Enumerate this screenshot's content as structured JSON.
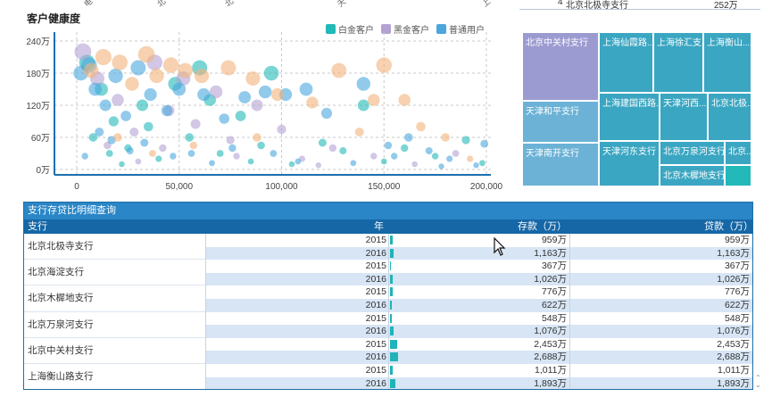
{
  "top_ticks": [
    "电",
    "北",
    "北",
    "天",
    "上"
  ],
  "top_fragment": {
    "row_number": "4",
    "branch": "北京北极寺支行",
    "value": "252万"
  },
  "scatter": {
    "title": "客户健康度",
    "legend": [
      {
        "name": "白金客户",
        "color": "#22b9b8"
      },
      {
        "name": "黑金客户",
        "color": "#b4a2d4"
      },
      {
        "name": "普通用户",
        "color": "#4aa6dd"
      }
    ],
    "y_ticks": [
      "240万",
      "180万",
      "120万",
      "60万",
      "0万"
    ],
    "x_ticks": [
      "0",
      "50,000",
      "100,000",
      "150,000",
      "200,000"
    ]
  },
  "chart_data": {
    "type": "scatter",
    "title": "客户健康度",
    "xlabel": "",
    "ylabel": "",
    "x_range": [
      0,
      200000
    ],
    "y_range": [
      0,
      240
    ],
    "y_unit": "万",
    "grid": true,
    "legend_position": "top-right",
    "series": [
      {
        "name": "白金客户",
        "color": "#22b9b8",
        "points": [
          [
            5000,
            200
          ],
          [
            12000,
            150
          ],
          [
            18000,
            90
          ],
          [
            25000,
            40
          ],
          [
            32000,
            120
          ],
          [
            40000,
            20
          ],
          [
            48000,
            160
          ],
          [
            55000,
            60
          ],
          [
            60000,
            190
          ],
          [
            70000,
            30
          ],
          [
            80000,
            100
          ],
          [
            90000,
            45
          ],
          [
            95000,
            180
          ],
          [
            105000,
            10
          ],
          [
            120000,
            50
          ],
          [
            140000,
            120
          ],
          [
            150000,
            15
          ],
          [
            160000,
            40
          ],
          [
            175000,
            25
          ],
          [
            190000,
            55
          ],
          [
            198000,
            12
          ],
          [
            8000,
            60
          ],
          [
            16000,
            30
          ],
          [
            22000,
            10
          ],
          [
            35000,
            80
          ],
          [
            65000,
            130
          ],
          [
            85000,
            15
          ],
          [
            130000,
            35
          ]
        ]
      },
      {
        "name": "黑金客户",
        "color": "#b4a2d4",
        "points": [
          [
            3000,
            220
          ],
          [
            10000,
            170
          ],
          [
            20000,
            130
          ],
          [
            28000,
            70
          ],
          [
            38000,
            200
          ],
          [
            45000,
            110
          ],
          [
            52000,
            170
          ],
          [
            58000,
            85
          ],
          [
            68000,
            145
          ],
          [
            75000,
            55
          ],
          [
            88000,
            120
          ],
          [
            100000,
            75
          ],
          [
            110000,
            20
          ],
          [
            125000,
            40
          ],
          [
            145000,
            25
          ],
          [
            165000,
            10
          ],
          [
            185000,
            30
          ],
          [
            15000,
            45
          ],
          [
            30000,
            15
          ],
          [
            42000,
            40
          ],
          [
            78000,
            25
          ],
          [
            118000,
            8
          ]
        ]
      },
      {
        "name": "普通用户",
        "color": "#4aa6dd",
        "points": [
          [
            2000,
            180
          ],
          [
            6000,
            195
          ],
          [
            9000,
            150
          ],
          [
            14000,
            120
          ],
          [
            19000,
            175
          ],
          [
            24000,
            100
          ],
          [
            30000,
            190
          ],
          [
            36000,
            140
          ],
          [
            44000,
            110
          ],
          [
            50000,
            150
          ],
          [
            62000,
            140
          ],
          [
            72000,
            95
          ],
          [
            82000,
            135
          ],
          [
            92000,
            145
          ],
          [
            102000,
            140
          ],
          [
            112000,
            150
          ],
          [
            122000,
            105
          ],
          [
            140000,
            160
          ],
          [
            152000,
            45
          ],
          [
            162000,
            60
          ],
          [
            172000,
            35
          ],
          [
            182000,
            20
          ],
          [
            195000,
            8
          ],
          [
            4000,
            25
          ],
          [
            11000,
            70
          ],
          [
            17000,
            55
          ],
          [
            26000,
            35
          ],
          [
            33000,
            50
          ],
          [
            47000,
            25
          ],
          [
            56000,
            30
          ],
          [
            66000,
            12
          ],
          [
            76000,
            40
          ],
          [
            96000,
            30
          ],
          [
            108000,
            15
          ],
          [
            135000,
            12
          ],
          [
            155000,
            25
          ],
          [
            178000,
            6
          ],
          [
            199000,
            48
          ]
        ]
      },
      {
        "name": "",
        "color": "#f2b27c",
        "points": [
          [
            7000,
            185
          ],
          [
            13000,
            210
          ],
          [
            21000,
            200
          ],
          [
            27000,
            160
          ],
          [
            34000,
            215
          ],
          [
            39000,
            175
          ],
          [
            46000,
            195
          ],
          [
            53000,
            185
          ],
          [
            61000,
            175
          ],
          [
            74000,
            190
          ],
          [
            86000,
            170
          ],
          [
            98000,
            140
          ],
          [
            115000,
            125
          ],
          [
            128000,
            185
          ],
          [
            145000,
            130
          ],
          [
            150000,
            195
          ],
          [
            160000,
            130
          ],
          [
            168000,
            80
          ],
          [
            180000,
            60
          ],
          [
            192000,
            20
          ],
          [
            20000,
            60
          ],
          [
            37000,
            30
          ],
          [
            57000,
            45
          ],
          [
            88000,
            60
          ],
          [
            138000,
            70
          ]
        ]
      }
    ]
  },
  "treemap": {
    "cells": [
      {
        "label": "北京中关村支行",
        "color": "#9c9bd1"
      },
      {
        "label": "上海仙霞路...",
        "color": "#3aa6c2"
      },
      {
        "label": "上海徐汇支...",
        "color": "#3aa6c2"
      },
      {
        "label": "上海衡山...",
        "color": "#3aa6c2"
      },
      {
        "label": "天津和平支行",
        "color": "#6bb2d6"
      },
      {
        "label": "上海建国西路...",
        "color": "#3aa6c2"
      },
      {
        "label": "天津河西...",
        "color": "#3aa6c2"
      },
      {
        "label": "北京北极...",
        "color": "#3aa6c2"
      },
      {
        "label": "天津南开支行",
        "color": "#6bb2d6"
      },
      {
        "label": "天津河东支行",
        "color": "#3aa6c2"
      },
      {
        "label": "北京万泉河支行",
        "color": "#3aa6c2"
      },
      {
        "label": "北京...",
        "color": "#3aa6c2"
      },
      {
        "label": "北京木樨地支行",
        "color": "#3aa6c2"
      },
      {
        "label": "",
        "color": "#22b9b8"
      }
    ]
  },
  "detail": {
    "title": "支行存贷比明细查询",
    "headers": {
      "branch": "支行",
      "year": "年",
      "deposit": "存款（万）",
      "loan": "贷款（万）"
    },
    "max_value": 2688,
    "rows": [
      {
        "branch": "北京北极寺支行",
        "year": "2015",
        "deposit": "959万",
        "deposit_value": 959,
        "loan": "959万"
      },
      {
        "branch": "北京北极寺支行",
        "year": "2016",
        "deposit": "1,163万",
        "deposit_value": 1163,
        "loan": "1,163万"
      },
      {
        "branch": "北京海淀支行",
        "year": "2015",
        "deposit": "367万",
        "deposit_value": 367,
        "loan": "367万"
      },
      {
        "branch": "北京海淀支行",
        "year": "2016",
        "deposit": "1,026万",
        "deposit_value": 1026,
        "loan": "1,026万"
      },
      {
        "branch": "北京木樨地支行",
        "year": "2015",
        "deposit": "776万",
        "deposit_value": 776,
        "loan": "776万"
      },
      {
        "branch": "北京木樨地支行",
        "year": "2016",
        "deposit": "622万",
        "deposit_value": 622,
        "loan": "622万"
      },
      {
        "branch": "北京万泉河支行",
        "year": "2015",
        "deposit": "548万",
        "deposit_value": 548,
        "loan": "548万"
      },
      {
        "branch": "北京万泉河支行",
        "year": "2016",
        "deposit": "1,076万",
        "deposit_value": 1076,
        "loan": "1,076万"
      },
      {
        "branch": "北京中关村支行",
        "year": "2015",
        "deposit": "2,453万",
        "deposit_value": 2453,
        "loan": "2,453万"
      },
      {
        "branch": "北京中关村支行",
        "year": "2016",
        "deposit": "2,688万",
        "deposit_value": 2688,
        "loan": "2,688万"
      },
      {
        "branch": "上海衡山路支行",
        "year": "2015",
        "deposit": "1,011万",
        "deposit_value": 1011,
        "loan": "1,011万"
      },
      {
        "branch": "上海衡山路支行",
        "year": "2016",
        "deposit": "1,893万",
        "deposit_value": 1893,
        "loan": "1,893万"
      }
    ]
  }
}
